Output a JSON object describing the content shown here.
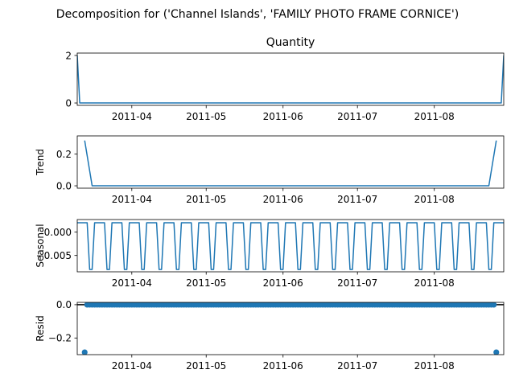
{
  "figure": {
    "suptitle": "Decomposition for ('Channel Islands', 'FAMILY PHOTO FRAME CORNICE')"
  },
  "chart_data": [
    {
      "type": "line",
      "title": "Quantity",
      "ylabel": "",
      "xlim": [
        "2011-03-10",
        "2011-08-29"
      ],
      "ylim": [
        -0.1,
        2.1
      ],
      "yticks": [
        0,
        2
      ],
      "ytick_labels": [
        "0",
        "2"
      ],
      "xticks": [
        "2011-04-01",
        "2011-05-01",
        "2011-06-01",
        "2011-07-01",
        "2011-08-01"
      ],
      "xtick_labels": [
        "2011-04",
        "2011-05",
        "2011-06",
        "2011-07",
        "2011-08"
      ],
      "color": "#1f77b4",
      "series": [
        {
          "x": [
            "2011-03-10",
            "2011-03-11",
            "2011-08-28",
            "2011-08-29"
          ],
          "values": [
            2,
            0,
            0,
            2
          ]
        }
      ]
    },
    {
      "type": "line",
      "title": "",
      "ylabel": "Trend",
      "xlim": [
        "2011-03-10",
        "2011-08-29"
      ],
      "ylim": [
        -0.015,
        0.315
      ],
      "yticks": [
        0.0,
        0.2
      ],
      "ytick_labels": [
        "0.0",
        "0.2"
      ],
      "xticks": [
        "2011-04-01",
        "2011-05-01",
        "2011-06-01",
        "2011-07-01",
        "2011-08-01"
      ],
      "xtick_labels": [
        "2011-04",
        "2011-05",
        "2011-06",
        "2011-07",
        "2011-08"
      ],
      "color": "#1f77b4",
      "series": [
        {
          "x": [
            "2011-03-13",
            "2011-03-16",
            "2011-08-23",
            "2011-08-26"
          ],
          "values": [
            0.2857,
            0,
            0,
            0.2857
          ]
        }
      ]
    },
    {
      "type": "line",
      "title": "",
      "ylabel": "Seasonal",
      "xlim": [
        "2011-03-10",
        "2011-08-29"
      ],
      "ylim": [
        -0.0085,
        0.0027
      ],
      "yticks": [
        0.0,
        -0.005
      ],
      "ytick_labels": [
        "0.000",
        "−0.005"
      ],
      "xticks": [
        "2011-04-01",
        "2011-05-01",
        "2011-06-01",
        "2011-07-01",
        "2011-08-01"
      ],
      "xtick_labels": [
        "2011-04",
        "2011-05",
        "2011-06",
        "2011-07",
        "2011-08"
      ],
      "color": "#1f77b4",
      "pattern": {
        "start": "2011-03-10",
        "end": "2011-08-29",
        "period_days": 7,
        "weekly_values": [
          0.002,
          0.002,
          0.002,
          0.002,
          0.002,
          -0.008,
          -0.008
        ]
      }
    },
    {
      "type": "scatter",
      "title": "",
      "ylabel": "Resid",
      "xlim": [
        "2011-03-10",
        "2011-08-29"
      ],
      "ylim": [
        -0.3,
        0.014
      ],
      "yticks": [
        0.0,
        -0.2
      ],
      "ytick_labels": [
        "0.0",
        "−0.2"
      ],
      "xticks": [
        "2011-04-01",
        "2011-05-01",
        "2011-06-01",
        "2011-07-01",
        "2011-08-01"
      ],
      "xtick_labels": [
        "2011-04",
        "2011-05",
        "2011-06",
        "2011-07",
        "2011-08"
      ],
      "color": "#1f77b4",
      "zero_line": true,
      "range": {
        "start": "2011-03-13",
        "end": "2011-08-26",
        "value": 0
      },
      "outliers": [
        {
          "x": "2011-03-13",
          "value": -0.2857
        },
        {
          "x": "2011-08-26",
          "value": -0.2857
        }
      ]
    }
  ]
}
